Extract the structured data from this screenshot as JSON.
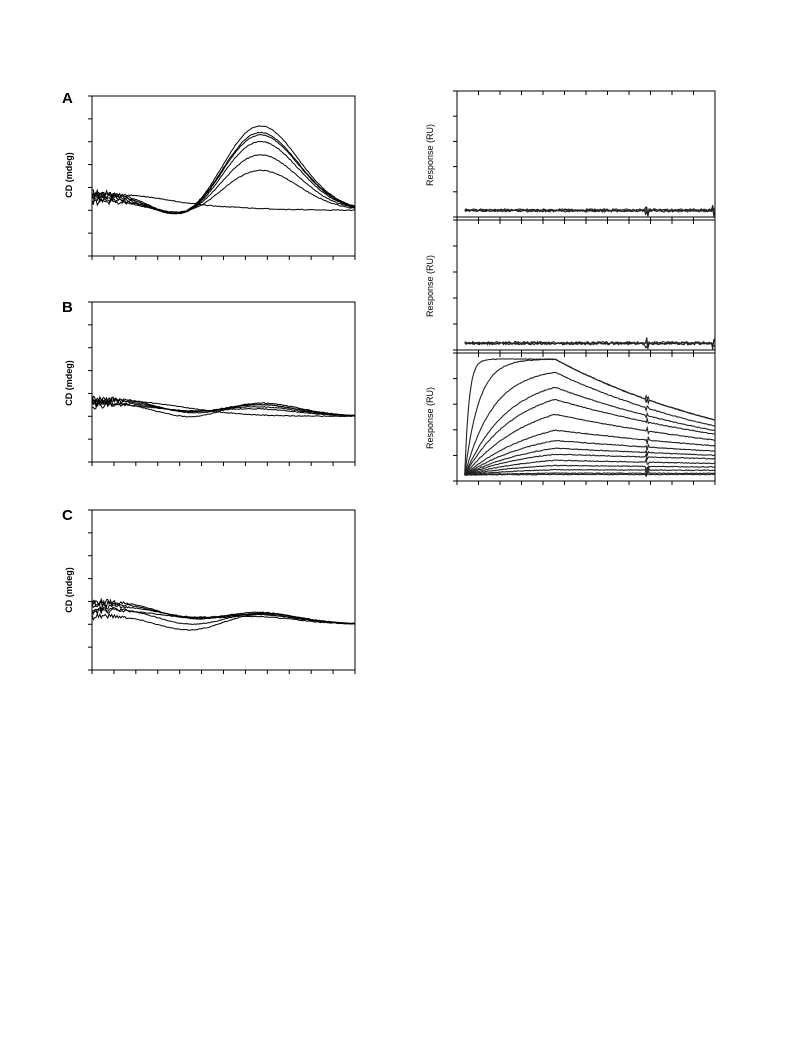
{
  "panels": [
    {
      "id": "cd-a",
      "label": "A",
      "ylabel": "CD (mdeg)"
    },
    {
      "id": "cd-b",
      "label": "B",
      "ylabel": "CD (mdeg)"
    },
    {
      "id": "cd-c",
      "label": "C",
      "ylabel": "CD (mdeg)"
    },
    {
      "id": "spr-1",
      "label": "",
      "ylabel": "Response (RU)"
    },
    {
      "id": "spr-2",
      "label": "",
      "ylabel": "Response (RU)"
    },
    {
      "id": "spr-3",
      "label": "",
      "ylabel": "Response (RU)"
    }
  ],
  "chart_data": [
    {
      "id": "cd-a",
      "type": "line",
      "title": "",
      "xlabel": "",
      "ylabel": "CD (mdeg)",
      "xlim": [
        0,
        100
      ],
      "ylim": [
        -20,
        50
      ],
      "grid": false,
      "legend": "none",
      "series": [
        {
          "bands": [
            [
              8,
              25,
              8
            ],
            [
              38,
              13,
              -12
            ],
            [
              63,
              15,
              38
            ]
          ],
          "base": 0
        },
        {
          "bands": [
            [
              8,
              25,
              7
            ],
            [
              38,
              13,
              -11
            ],
            [
              63,
              15,
              35
            ]
          ],
          "base": 0
        },
        {
          "bands": [
            [
              8,
              25,
              7
            ],
            [
              38,
              13,
              -11
            ],
            [
              63,
              15,
              34
            ]
          ],
          "base": 0
        },
        {
          "bands": [
            [
              8,
              25,
              6
            ],
            [
              38,
              13,
              -10
            ],
            [
              63,
              15,
              31
            ]
          ],
          "base": 0
        },
        {
          "bands": [
            [
              8,
              25,
              5
            ],
            [
              38,
              13,
              -8
            ],
            [
              63,
              15,
              25
            ]
          ],
          "base": 0
        },
        {
          "bands": [
            [
              8,
              25,
              4
            ],
            [
              38,
              13,
              -6
            ],
            [
              63,
              15,
              18
            ]
          ],
          "base": 0
        },
        {
          "bands": [
            [
              8,
              28,
              7
            ],
            [
              38,
              13,
              -1
            ],
            [
              63,
              15,
              0
            ]
          ],
          "base": 0
        }
      ]
    },
    {
      "id": "cd-b",
      "type": "line",
      "title": "",
      "xlabel": "",
      "ylabel": "CD (mdeg)",
      "xlim": [
        0,
        100
      ],
      "ylim": [
        -20,
        50
      ],
      "grid": false,
      "legend": "none",
      "series": [
        {
          "bands": [
            [
              8,
              25,
              8
            ],
            [
              38,
              13,
              -4
            ],
            [
              62,
              16,
              5
            ]
          ],
          "base": 0
        },
        {
          "bands": [
            [
              8,
              25,
              7
            ],
            [
              38,
              13,
              -3
            ],
            [
              62,
              16,
              5
            ]
          ],
          "base": 0
        },
        {
          "bands": [
            [
              8,
              25,
              6
            ],
            [
              38,
              13,
              -2
            ],
            [
              62,
              16,
              4
            ]
          ],
          "base": 0
        },
        {
          "bands": [
            [
              8,
              25,
              6
            ],
            [
              38,
              13,
              -5
            ],
            [
              62,
              16,
              6
            ]
          ],
          "base": 0
        },
        {
          "bands": [
            [
              8,
              25,
              5
            ],
            [
              38,
              13,
              -1
            ],
            [
              62,
              16,
              3
            ]
          ],
          "base": 0
        },
        {
          "bands": [
            [
              8,
              25,
              7
            ],
            [
              38,
              13,
              0
            ],
            [
              62,
              16,
              0
            ]
          ],
          "base": 0
        }
      ]
    },
    {
      "id": "cd-c",
      "type": "line",
      "title": "",
      "xlabel": "",
      "ylabel": "CD (mdeg)",
      "xlim": [
        0,
        100
      ],
      "ylim": [
        -20,
        50
      ],
      "grid": false,
      "legend": "none",
      "series": [
        {
          "bands": [
            [
              8,
              25,
              10
            ],
            [
              38,
              13,
              -4
            ],
            [
              62,
              16,
              5
            ]
          ],
          "base": 0
        },
        {
          "bands": [
            [
              8,
              25,
              9
            ],
            [
              38,
              13,
              -3
            ],
            [
              62,
              16,
              4
            ]
          ],
          "base": 0
        },
        {
          "bands": [
            [
              8,
              25,
              8
            ],
            [
              38,
              13,
              -2
            ],
            [
              62,
              16,
              4
            ]
          ],
          "base": 0
        },
        {
          "bands": [
            [
              8,
              25,
              7
            ],
            [
              38,
              13,
              -5
            ],
            [
              62,
              16,
              5
            ]
          ],
          "base": 0
        },
        {
          "bands": [
            [
              8,
              25,
              6
            ],
            [
              38,
              13,
              -1
            ],
            [
              62,
              16,
              3
            ]
          ],
          "base": 0
        },
        {
          "bands": [
            [
              8,
              25,
              4
            ],
            [
              38,
              13,
              -6
            ],
            [
              62,
              16,
              5
            ]
          ],
          "base": 0
        }
      ]
    },
    {
      "id": "spr-1",
      "type": "line",
      "title": "",
      "xlabel": "",
      "ylabel": "Response (RU)",
      "xlim": [
        0,
        100
      ],
      "ylim": [
        -5,
        100
      ],
      "grid": false,
      "legend": "none",
      "series": [
        {
          "flat": 0.5
        },
        {
          "flat": 1.0
        },
        {
          "flat": 0.0
        }
      ]
    },
    {
      "id": "spr-2",
      "type": "line",
      "title": "",
      "xlabel": "",
      "ylabel": "Response (RU)",
      "xlim": [
        0,
        100
      ],
      "ylim": [
        -5,
        100
      ],
      "grid": false,
      "legend": "none",
      "series": [
        {
          "flat": 0.5
        },
        {
          "flat": 1.0
        },
        {
          "flat": 0.0
        }
      ]
    },
    {
      "id": "spr-3",
      "type": "line",
      "title": "",
      "xlabel": "",
      "ylabel": "Response (RU)",
      "xlim": [
        0,
        100
      ],
      "ylim": [
        -5,
        100
      ],
      "grid": false,
      "legend": "none",
      "injection": {
        "start": 3,
        "end": 38
      },
      "series": [
        {
          "rmax": 95,
          "kon": 0.6,
          "koff": 0.012
        },
        {
          "rmax": 95,
          "kon": 0.18,
          "koff": 0.012
        },
        {
          "rmax": 88,
          "kon": 0.09,
          "koff": 0.012
        },
        {
          "rmax": 82,
          "kon": 0.06,
          "koff": 0.011
        },
        {
          "rmax": 75,
          "kon": 0.05,
          "koff": 0.01
        },
        {
          "rmax": 66,
          "kon": 0.04,
          "koff": 0.009
        },
        {
          "rmax": 52,
          "kon": 0.035,
          "koff": 0.007
        },
        {
          "rmax": 40,
          "kon": 0.035,
          "koff": 0.006
        },
        {
          "rmax": 31,
          "kon": 0.035,
          "koff": 0.005
        },
        {
          "rmax": 24,
          "kon": 0.035,
          "koff": 0.004
        },
        {
          "rmax": 17,
          "kon": 0.035,
          "koff": 0.004
        },
        {
          "rmax": 11,
          "kon": 0.035,
          "koff": 0.003
        },
        {
          "rmax": 6,
          "kon": 0.035,
          "koff": 0.002
        },
        {
          "rmax": 2,
          "kon": 0.035,
          "koff": 0.001
        },
        {
          "rmax": 0.5,
          "kon": 0.035,
          "koff": 0.0
        }
      ]
    }
  ]
}
